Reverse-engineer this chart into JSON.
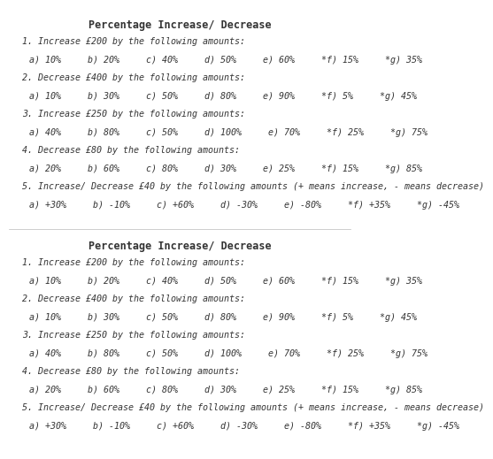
{
  "title": "Percentage Increase/ Decrease",
  "background_color": "#ffffff",
  "sections": [
    {
      "question": "1. Increase £200 by the following amounts:",
      "answers": "a) 10%     b) 20%     c) 40%     d) 50%     e) 60%     *f) 15%     *g) 35%"
    },
    {
      "question": "2. Decrease £400 by the following amounts:",
      "answers": "a) 10%     b) 30%     c) 50%     d) 80%     e) 90%     *f) 5%     *g) 45%"
    },
    {
      "question": "3. Increase £250 by the following amounts:",
      "answers": "a) 40%     b) 80%     c) 50%     d) 100%     e) 70%     *f) 25%     *g) 75%"
    },
    {
      "question": "4. Decrease £80 by the following amounts:",
      "answers": "a) 20%     b) 60%     c) 80%     d) 30%     e) 25%     *f) 15%     *g) 85%"
    },
    {
      "question": "5. Increase/ Decrease £40 by the following amounts (+ means increase, - means decrease)",
      "answers": "a) +30%     b) -10%     c) +60%     d) -30%     e) -80%     *f) +35%     *g) -45%"
    }
  ],
  "title_fontsize": 8.5,
  "question_fontsize": 7.2,
  "answer_fontsize": 7.2,
  "text_color": "#333333"
}
